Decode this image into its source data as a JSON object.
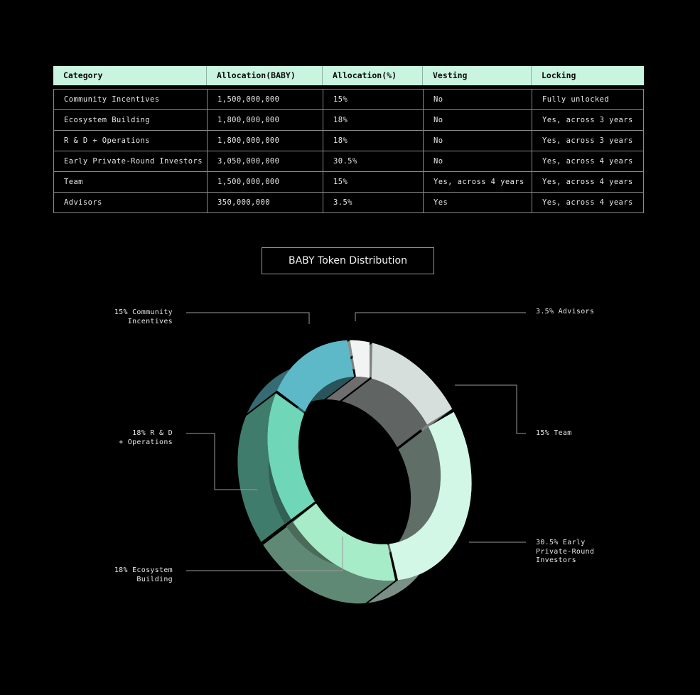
{
  "table": {
    "headers": [
      "Category",
      "Allocation(BABY)",
      "Allocation(%)",
      "Vesting",
      "Locking"
    ],
    "rows": [
      [
        "Community Incentives",
        "1,500,000,000",
        "15%",
        "No",
        "Fully unlocked"
      ],
      [
        "Ecosystem Building",
        "1,800,000,000",
        "18%",
        "No",
        "Yes, across 3 years"
      ],
      [
        "R & D + Operations",
        "1,800,000,000",
        "18%",
        "No",
        "Yes, across 3 years"
      ],
      [
        "Early Private-Round Investors",
        "3,050,000,000",
        "30.5%",
        "No",
        "Yes, across 4 years"
      ],
      [
        "Team",
        "1,500,000,000",
        "15%",
        "Yes, across 4 years",
        "Yes, across 4 years"
      ],
      [
        "Advisors",
        "350,000,000",
        "3.5%",
        "Yes",
        "Yes, across 4 years"
      ]
    ]
  },
  "chart_data": {
    "type": "pie",
    "title": "BABY Token Distribution",
    "style": "3d-donut",
    "slices": [
      {
        "name": "Community Incentives",
        "value": 15,
        "label_lines": [
          "15% Community",
          "Incentives"
        ],
        "color": "#5db8c8"
      },
      {
        "name": "Advisors",
        "value": 3.5,
        "label_lines": [
          "3.5% Advisors"
        ],
        "color": "#f2f4f3"
      },
      {
        "name": "Team",
        "value": 15,
        "label_lines": [
          "15% Team"
        ],
        "color": "#d6dfdb"
      },
      {
        "name": "Early Private-Round Investors",
        "value": 30.5,
        "label_lines": [
          "30.5% Early",
          "Private-Round",
          "Investors"
        ],
        "color": "#d2f7e6"
      },
      {
        "name": "Ecosystem Building",
        "value": 18,
        "label_lines": [
          "18% Ecosystem",
          "Building"
        ],
        "color": "#a6ecc9"
      },
      {
        "name": "R & D + Operations",
        "value": 18,
        "label_lines": [
          "18% R & D",
          "+ Operations"
        ],
        "color": "#6fd6b8"
      }
    ]
  }
}
